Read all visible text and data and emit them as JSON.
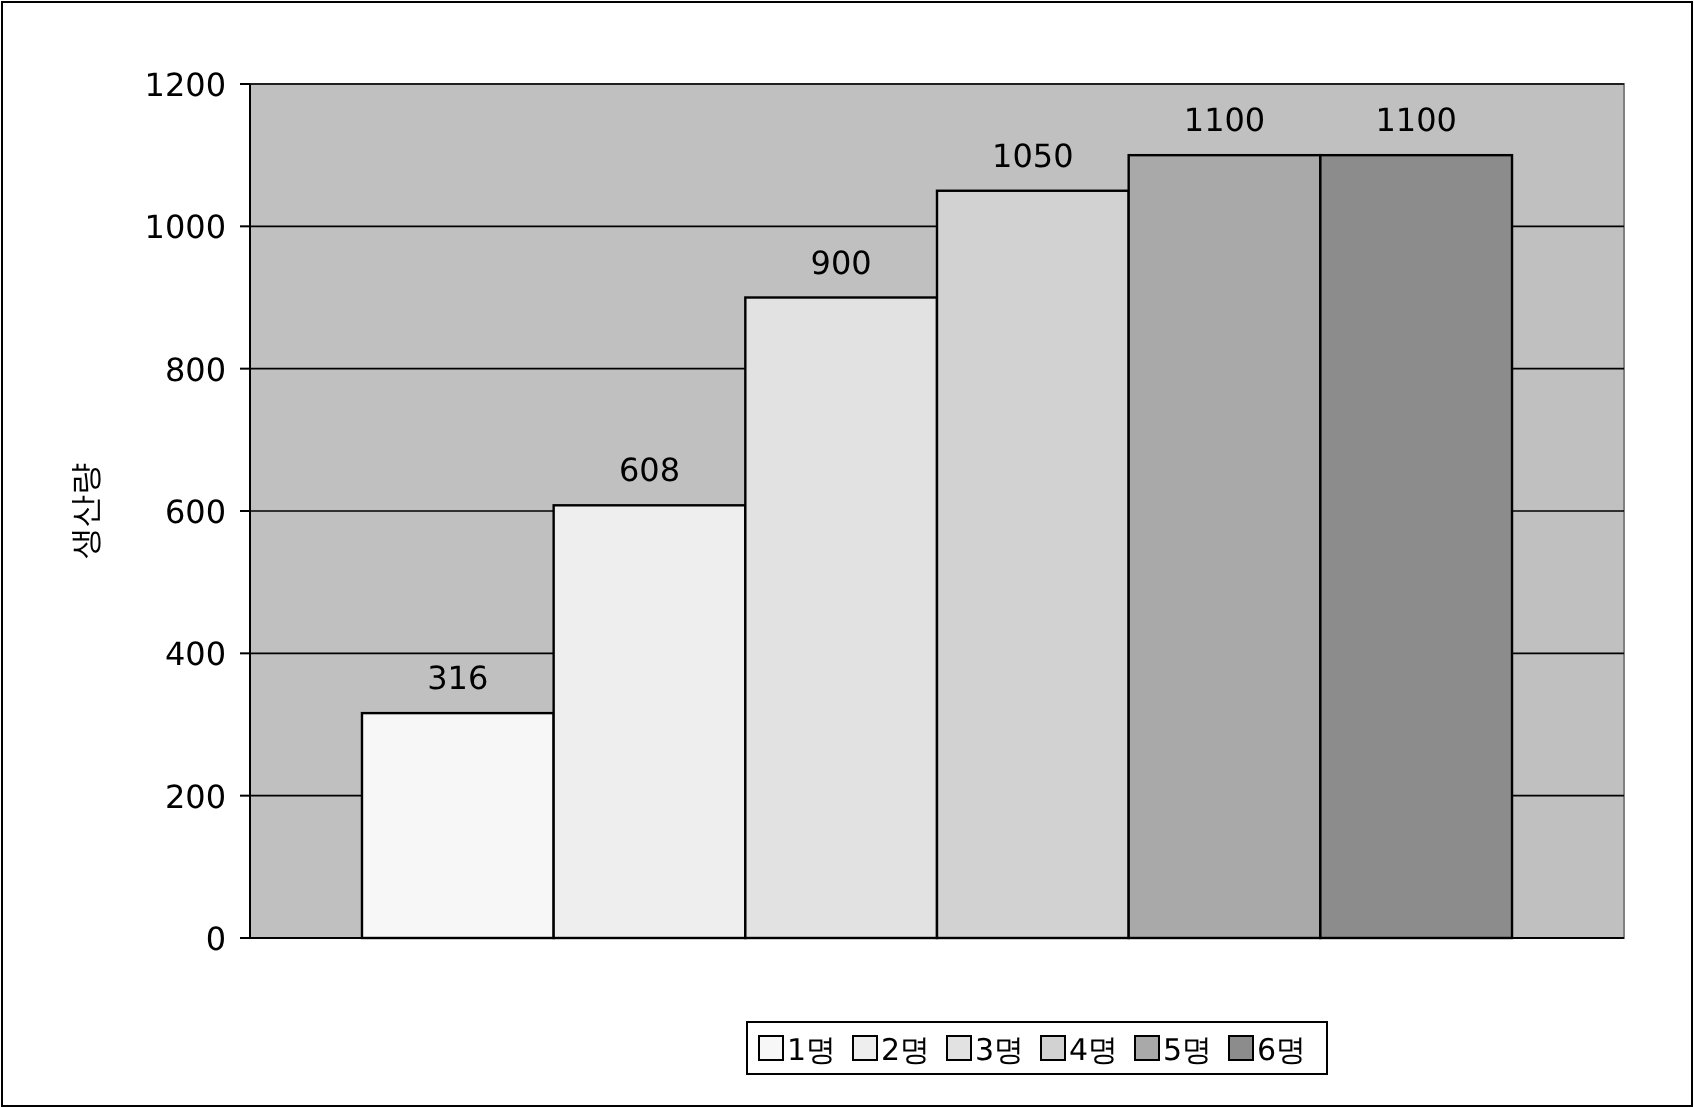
{
  "chart_data": {
    "type": "bar",
    "ylabel": "생산량",
    "categories": [
      null
    ],
    "series": [
      {
        "name": "1명",
        "color": "#f7f7f7",
        "values": [
          316
        ]
      },
      {
        "name": "2명",
        "color": "#eeeeee",
        "values": [
          608
        ]
      },
      {
        "name": "3명",
        "color": "#e2e2e2",
        "values": [
          900
        ]
      },
      {
        "name": "4명",
        "color": "#d2d2d2",
        "values": [
          1050
        ]
      },
      {
        "name": "5명",
        "color": "#a9a9a9",
        "values": [
          1100
        ]
      },
      {
        "name": "6명",
        "color": "#8c8c8c",
        "values": [
          1100
        ]
      }
    ],
    "ylim": [
      0,
      1200
    ],
    "yticks": [
      0,
      200,
      400,
      600,
      800,
      1000,
      1200
    ],
    "grid": "y",
    "legend": "bottom",
    "data_labels": true
  }
}
